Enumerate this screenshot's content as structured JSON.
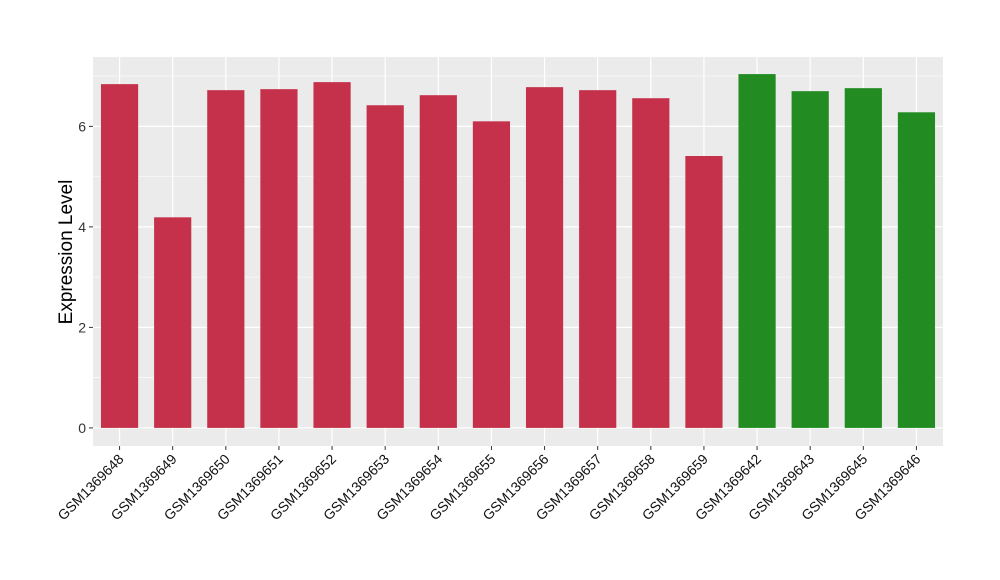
{
  "chart_data": {
    "type": "bar",
    "title": "",
    "xlabel": "",
    "ylabel": "Expression Level",
    "ylim": [
      -0.36,
      7.38
    ],
    "yticks": [
      0,
      2,
      4,
      6
    ],
    "grid": true,
    "categories": [
      "GSM1369648",
      "GSM1369649",
      "GSM1369650",
      "GSM1369651",
      "GSM1369652",
      "GSM1369653",
      "GSM1369654",
      "GSM1369655",
      "GSM1369656",
      "GSM1369657",
      "GSM1369658",
      "GSM1369659",
      "GSM1369642",
      "GSM1369643",
      "GSM1369645",
      "GSM1369646"
    ],
    "values": [
      6.84,
      4.19,
      6.72,
      6.74,
      6.88,
      6.42,
      6.62,
      6.1,
      6.78,
      6.72,
      6.56,
      5.41,
      7.04,
      6.7,
      6.76,
      6.28
    ],
    "groups": [
      "a",
      "a",
      "a",
      "a",
      "a",
      "a",
      "a",
      "a",
      "a",
      "a",
      "a",
      "a",
      "b",
      "b",
      "b",
      "b"
    ],
    "colors": {
      "a": "#C5314A",
      "b": "#228B22"
    },
    "panel_background": "#EBEBEB",
    "gridline_color": "#FFFFFF"
  }
}
